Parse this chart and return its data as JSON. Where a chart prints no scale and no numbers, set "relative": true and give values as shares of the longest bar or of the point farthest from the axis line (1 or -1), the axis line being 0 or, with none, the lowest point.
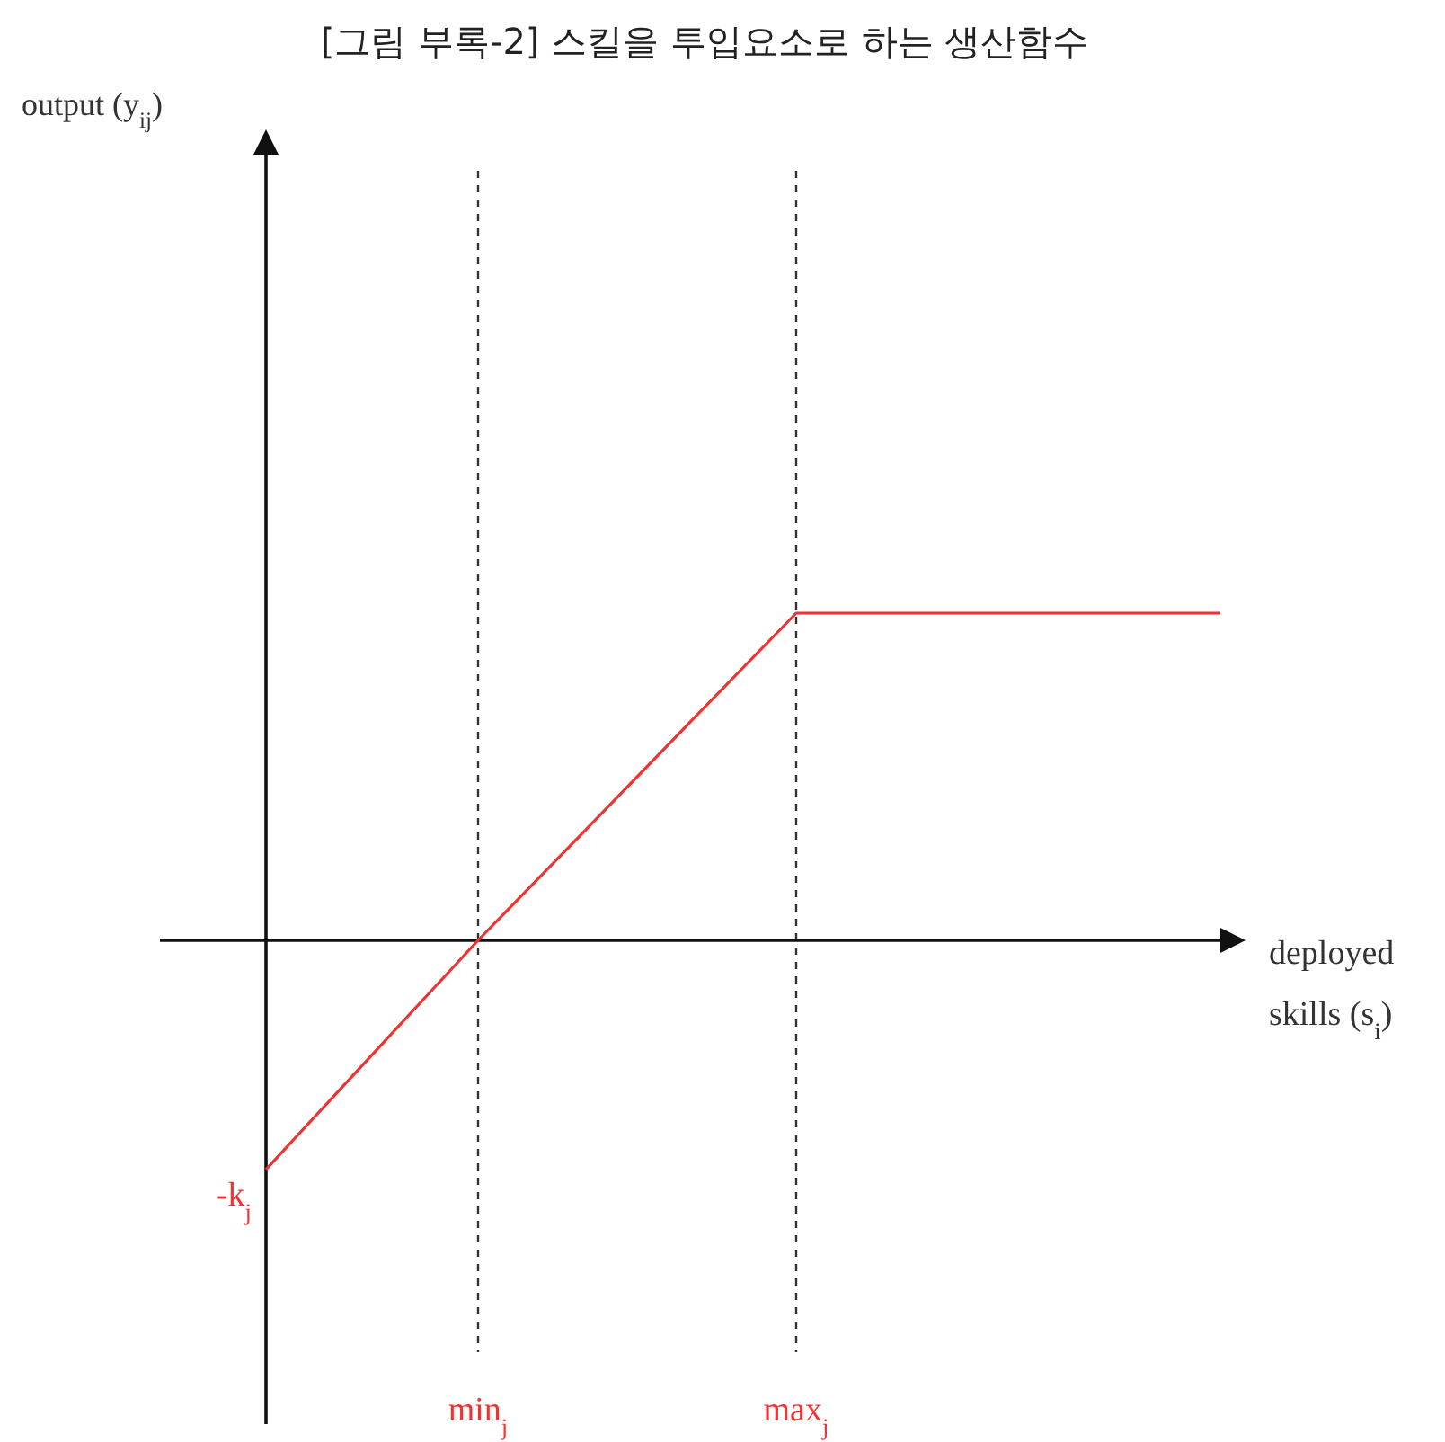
{
  "chart_data": {
    "type": "line",
    "title": "[그림 부록-2] 스킬을 투입요소로 하는 생산함수",
    "xlabel": "deployed skills (s$_{i}$)",
    "relative": true,
    "categories": [
      null,
      null,
      "min$_{j}$",
      null,
      null,
      "max$_{j}$",
      null,
      null,
      null,
      null
    ],
    "series": [
      {
        "color": "#ee3333",
        "values": [
          -0.7,
          -0.35,
          0,
          0.333,
          0.667,
          1,
          1,
          1,
          1,
          1
        ]
      }
    ],
    "annotations": [
      "-k$_{j}$",
      "output (y$_{ij}$)"
    ],
    "grid": "x",
    "tick_labels": "x",
    "legend": false,
    "marker": "none",
    "line_style": "solid"
  }
}
